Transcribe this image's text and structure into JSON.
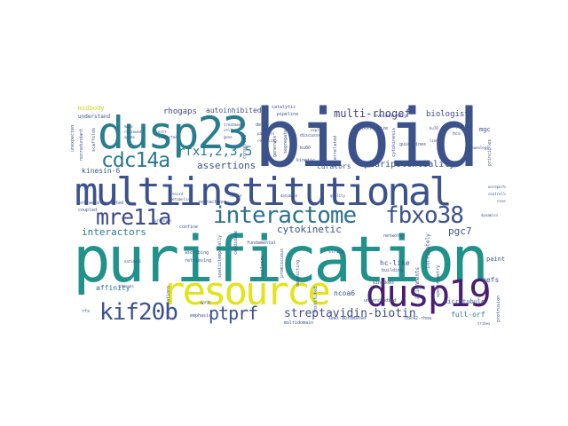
{
  "words": [
    {
      "text": "bioid",
      "color": "#3b528b"
    },
    {
      "text": "purification",
      "color": "#21918c"
    },
    {
      "text": "multiinstitutional",
      "color": "#3b528b"
    },
    {
      "text": "dusp23",
      "color": "#287d8e"
    },
    {
      "text": "resource",
      "color": "#e3e418"
    },
    {
      "text": "dusp19",
      "color": "#481f70"
    },
    {
      "text": "interactome",
      "color": "#2c728e"
    },
    {
      "text": "fbxo38",
      "color": "#3b528b"
    },
    {
      "text": "mre11a",
      "color": "#3e4a89"
    },
    {
      "text": "kif20b",
      "color": "#3b528b"
    },
    {
      "text": "cdc14a",
      "color": "#2a788e"
    },
    {
      "text": "ptprf",
      "color": "#3b528b"
    },
    {
      "text": "streptavidin-biotin",
      "color": "#3e4a89"
    },
    {
      "text": "rfx1,2,3,5",
      "color": "#2a788e"
    },
    {
      "text": "multi-rhogef",
      "color": "#433e85"
    },
    {
      "text": "interactors",
      "color": "#287c8e"
    },
    {
      "text": "cytokinetic",
      "color": "#3b528b"
    },
    {
      "text": "assertions",
      "color": "#3b528b"
    },
    {
      "text": "rhogaps",
      "color": "#3e4a89"
    },
    {
      "text": "pluripotentiality",
      "color": "#3b528b"
    },
    {
      "text": "pgc7",
      "color": "#3b528b"
    },
    {
      "text": "biologist",
      "color": "#3e4a89"
    },
    {
      "text": "curators",
      "color": "#3b528b"
    },
    {
      "text": "autoinhibited",
      "color": "#3b528b"
    },
    {
      "text": "kinesin-6",
      "color": "#3b528b"
    },
    {
      "text": "ncoa6",
      "color": "#3e4a89"
    },
    {
      "text": "full-orf",
      "color": "#287d8e"
    },
    {
      "text": "hc-like",
      "color": "#3b528b"
    },
    {
      "text": "gefs",
      "color": "#3b528b"
    },
    {
      "text": "affinity",
      "color": "#2c728e"
    },
    {
      "text": "microtubule",
      "color": "#3b528b"
    },
    {
      "text": "mgc",
      "color": "#3e4a89"
    },
    {
      "text": "paint",
      "color": "#3b528b"
    },
    {
      "text": "wrn",
      "color": "#3b528b"
    },
    {
      "text": "midbody",
      "color": "#c8e020"
    },
    {
      "text": "understand",
      "color": "#3b528b"
    },
    {
      "text": "catalytic",
      "color": "#3e4a89"
    },
    {
      "text": "pipeline",
      "color": "#3b528b"
    },
    {
      "text": "discussed",
      "color": "#3b528b"
    },
    {
      "text": "fundamental",
      "color": "#3b528b"
    },
    {
      "text": "software-assisted",
      "color": "#3b528b"
    },
    {
      "text": "coupled",
      "color": "#3b528b"
    },
    {
      "text": "retraction",
      "color": "#3b528b"
    },
    {
      "text": "confine",
      "color": "#3b528b"
    },
    {
      "text": "ascribing",
      "color": "#3b528b"
    },
    {
      "text": "retrieving",
      "color": "#3b528b"
    },
    {
      "text": "multidomain",
      "color": "#3b528b"
    },
    {
      "text": "semi-automated",
      "color": "#3b528b"
    },
    {
      "text": "emphasis",
      "color": "#3b528b"
    },
    {
      "text": "building",
      "color": "#3b528b"
    },
    {
      "text": "networks",
      "color": "#3b528b"
    },
    {
      "text": "understudied",
      "color": "#3b528b"
    },
    {
      "text": "string",
      "color": "#3b528b"
    },
    {
      "text": "expert",
      "color": "#3b528b"
    },
    {
      "text": "hcs",
      "color": "#3b528b"
    },
    {
      "text": "annotations",
      "color": "#3b528b"
    },
    {
      "text": "rfx",
      "color": "#3b528b"
    },
    {
      "text": "cdc42-rhoa",
      "color": "#3b528b"
    },
    {
      "text": "kinetic",
      "color": "#3b528b"
    },
    {
      "text": "ku80",
      "color": "#3b528b"
    },
    {
      "text": "deaf",
      "color": "#3b528b"
    },
    {
      "text": "kingdoms",
      "color": "#3b528b"
    },
    {
      "text": "interrelated",
      "color": "#3b528b"
    },
    {
      "text": "contextualize",
      "color": "#3b528b"
    },
    {
      "text": "evolutionary",
      "color": "#3b528b"
    },
    {
      "text": "cytokinesis",
      "color": "#3b528b"
    },
    {
      "text": "alignments",
      "color": "#3b528b"
    },
    {
      "text": "intricately",
      "color": "#3b528b"
    },
    {
      "text": "spectrometry",
      "color": "#3b528b"
    },
    {
      "text": "protrusion",
      "color": "#3b528b"
    },
    {
      "text": "depositing",
      "color": "#3b528b"
    },
    {
      "text": "instituted",
      "color": "#3b528b"
    },
    {
      "text": "mass",
      "color": "#3b528b"
    },
    {
      "text": "reviewed",
      "color": "#3b528b"
    },
    {
      "text": "unexpected",
      "color": "#3b528b"
    },
    {
      "text": "nonredundant",
      "color": "#3b528b"
    },
    {
      "text": "scaffolds",
      "color": "#3b528b"
    },
    {
      "text": "ap-ms",
      "color": "#3b528b"
    },
    {
      "text": "ects",
      "color": "#3b528b"
    },
    {
      "text": "guidelines",
      "color": "#3b528b"
    },
    {
      "text": "principles",
      "color": "#3b528b"
    },
    {
      "text": "suspected",
      "color": "#3b528b"
    },
    {
      "text": "treatment",
      "color": "#3b528b"
    },
    {
      "text": "cells",
      "color": "#3b528b"
    },
    {
      "text": "gene",
      "color": "#3b528b"
    },
    {
      "text": "partners",
      "color": "#3b528b"
    },
    {
      "text": "revealing",
      "color": "#3b528b"
    },
    {
      "text": "segregate",
      "color": "#3b528b"
    },
    {
      "text": "generate",
      "color": "#3b528b"
    },
    {
      "text": "key",
      "color": "#3b528b"
    },
    {
      "text": "usp7",
      "color": "#3b528b"
    },
    {
      "text": "bu70",
      "color": "#3b528b"
    },
    {
      "text": "conserved",
      "color": "#3b528b"
    },
    {
      "text": "lines",
      "color": "#3b528b"
    },
    {
      "text": "pan",
      "color": "#3b528b"
    },
    {
      "text": "archaeology",
      "color": "#3b528b"
    },
    {
      "text": "proteins",
      "color": "#3b528b"
    },
    {
      "text": "promiscuous",
      "color": "#3b528b"
    },
    {
      "text": "spatiotemporally",
      "color": "#3b528b"
    },
    {
      "text": "candidate",
      "color": "#3b528b"
    },
    {
      "text": "record",
      "color": "#3b528b"
    },
    {
      "text": "tribes",
      "color": "#3b528b"
    },
    {
      "text": "metabolic",
      "color": "#3b528b"
    },
    {
      "text": "auxiliary",
      "color": "#3b528b"
    },
    {
      "text": "future",
      "color": "#3b528b"
    },
    {
      "text": "dynamics",
      "color": "#3b528b"
    },
    {
      "text": "database",
      "color": "#3b528b"
    },
    {
      "text": "quality",
      "color": "#3b528b"
    },
    {
      "text": "unreported",
      "color": "#3b528b"
    },
    {
      "text": "anchors",
      "color": "#3b528b"
    },
    {
      "text": "glances",
      "color": "#3b528b"
    },
    {
      "text": "controlled",
      "color": "#3b528b"
    },
    {
      "text": "coverage",
      "color": "#3b528b"
    },
    {
      "text": "national",
      "color": "#3b528b"
    }
  ]
}
